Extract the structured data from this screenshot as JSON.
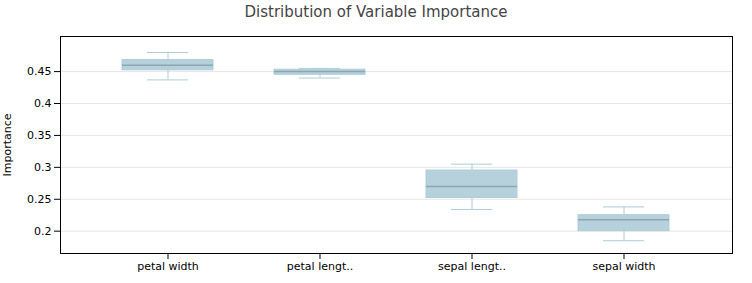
{
  "chart_data": {
    "type": "box",
    "title": "Distribution of Variable Importance",
    "ylabel": "Importance",
    "categories": [
      "petal width",
      "petal lengt..",
      "sepal lengt..",
      "sepal width"
    ],
    "box_data": [
      {
        "whislo": 0.437,
        "q1": 0.452,
        "med": 0.46,
        "q3": 0.468,
        "whishi": 0.48
      },
      {
        "whislo": 0.44,
        "q1": 0.445,
        "med": 0.45,
        "q3": 0.453,
        "whishi": 0.455
      },
      {
        "whislo": 0.234,
        "q1": 0.252,
        "med": 0.27,
        "q3": 0.295,
        "whishi": 0.305
      },
      {
        "whislo": 0.185,
        "q1": 0.2,
        "med": 0.218,
        "q3": 0.225,
        "whishi": 0.238
      }
    ],
    "color": "#aeccd8",
    "ylim": [
      0.165,
      0.505
    ],
    "yticks": [
      0.2,
      0.25,
      0.3,
      0.35,
      0.4,
      0.45
    ],
    "grid": true
  }
}
